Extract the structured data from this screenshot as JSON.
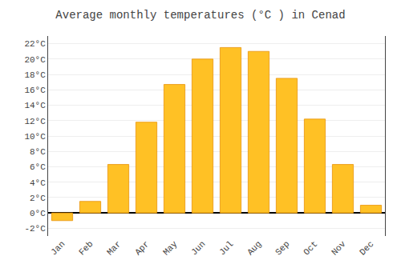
{
  "chart_data": {
    "type": "bar",
    "title": "Average monthly temperatures (°C ) in Cenad",
    "categories": [
      "Jan",
      "Feb",
      "Mar",
      "Apr",
      "May",
      "Jun",
      "Jul",
      "Aug",
      "Sep",
      "Oct",
      "Nov",
      "Dec"
    ],
    "values": [
      -1.0,
      1.5,
      6.3,
      11.8,
      16.7,
      20.0,
      21.5,
      21.0,
      17.5,
      12.2,
      6.3,
      1.0
    ],
    "color": "#FFC125",
    "ylim": [
      -3,
      23
    ],
    "yticks": [
      {
        "value": -2,
        "label": "-2°C"
      },
      {
        "value": 0,
        "label": "0°C"
      },
      {
        "value": 2,
        "label": "2°C"
      },
      {
        "value": 4,
        "label": "4°C"
      },
      {
        "value": 6,
        "label": "6°C"
      },
      {
        "value": 8,
        "label": "8°C"
      },
      {
        "value": 10,
        "label": "10°C"
      },
      {
        "value": 12,
        "label": "12°C"
      },
      {
        "value": 14,
        "label": "14°C"
      },
      {
        "value": 16,
        "label": "16°C"
      },
      {
        "value": 18,
        "label": "18°C"
      },
      {
        "value": 20,
        "label": "20°C"
      },
      {
        "value": 22,
        "label": "22°C"
      }
    ],
    "grid": true
  }
}
